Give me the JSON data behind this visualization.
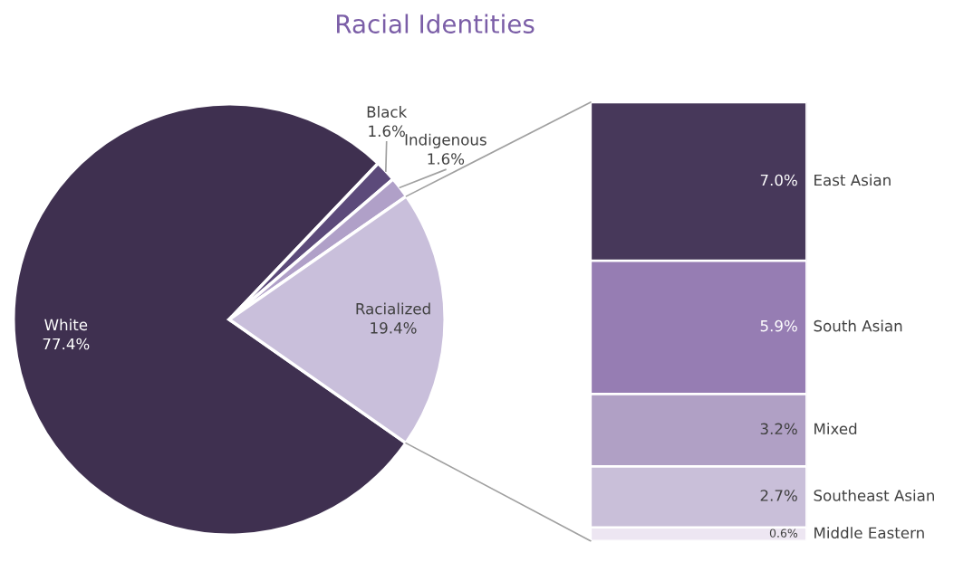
{
  "chart_data": [
    {
      "type": "pie",
      "title": "Racial Identities",
      "categories": [
        "White",
        "Black",
        "Indigenous",
        "Racialized"
      ],
      "values": [
        77.4,
        1.6,
        1.6,
        19.4
      ],
      "colors": [
        "#3f3050",
        "#5c4a7a",
        "#b0a0c8",
        "#c9bfdb"
      ],
      "value_labels": [
        "77.4%",
        "1.6%",
        "1.6%",
        "19.4%"
      ]
    },
    {
      "type": "bar",
      "stacked": true,
      "categories": [
        null
      ],
      "series": [
        {
          "name": "Middle Eastern",
          "color": "#ede6f2",
          "values": [
            0.6
          ],
          "value_labels": [
            "0.6%"
          ]
        },
        {
          "name": "Southeast Asian",
          "color": "#c9bfd9",
          "values": [
            2.7
          ],
          "value_labels": [
            "2.7%"
          ]
        },
        {
          "name": "Mixed",
          "color": "#b0a0c5",
          "values": [
            3.2
          ],
          "value_labels": [
            "3.2%"
          ]
        },
        {
          "name": "South Asian",
          "color": "#967db3",
          "values": [
            5.9
          ],
          "value_labels": [
            "5.9%"
          ]
        },
        {
          "name": "East Asian",
          "color": "#47385a",
          "values": [
            7.0
          ],
          "value_labels": [
            "7.0%"
          ]
        }
      ]
    }
  ]
}
